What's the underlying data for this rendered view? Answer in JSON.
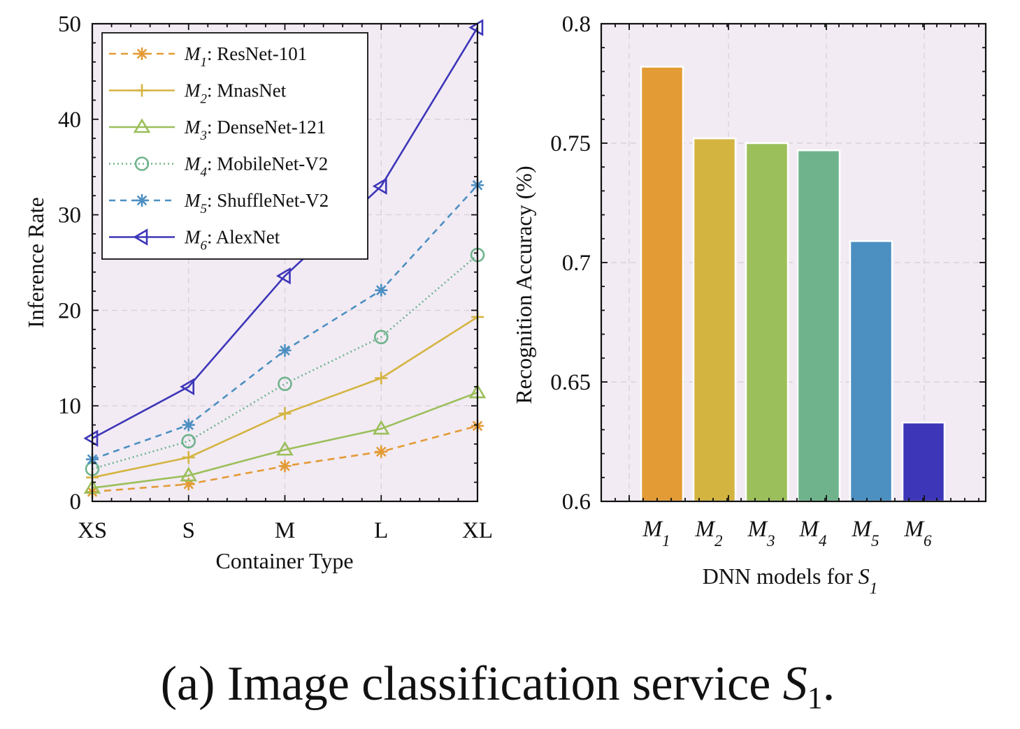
{
  "caption": {
    "prefix": "(a) Image classification service ",
    "var": "S",
    "sub": "1",
    "suffix": "."
  },
  "chart_data": [
    {
      "type": "line",
      "xlabel": "Container Type",
      "ylabel": "Inference Rate",
      "categories": [
        "XS",
        "S",
        "M",
        "L",
        "XL"
      ],
      "ylim": [
        0,
        50
      ],
      "yticks": [
        0,
        10,
        20,
        30,
        40,
        50
      ],
      "grid": true,
      "legend": "top-left",
      "series": [
        {
          "name": "ResNet-101",
          "sym": "M",
          "sub": "1",
          "values": [
            1.0,
            1.8,
            3.7,
            5.2,
            7.9
          ],
          "color": "#e39b35",
          "dash": "10,7",
          "marker": "asterisk"
        },
        {
          "name": "MnasNet",
          "sym": "M",
          "sub": "2",
          "values": [
            2.5,
            4.6,
            9.2,
            12.9,
            19.3
          ],
          "color": "#d4b441",
          "dash": "",
          "marker": "plus"
        },
        {
          "name": "DenseNet-121",
          "sym": "M",
          "sub": "3",
          "values": [
            1.4,
            2.7,
            5.4,
            7.6,
            11.4
          ],
          "color": "#9bbf5a",
          "dash": "",
          "marker": "triangle"
        },
        {
          "name": "MobileNet-V2",
          "sym": "M",
          "sub": "4",
          "values": [
            3.4,
            6.3,
            12.3,
            17.2,
            25.8
          ],
          "color": "#6fb38c",
          "dash": "2,4",
          "marker": "circle"
        },
        {
          "name": "ShuffleNet-V2",
          "sym": "M",
          "sub": "5",
          "values": [
            4.4,
            8.0,
            15.8,
            22.1,
            33.1
          ],
          "color": "#4c8fc1",
          "dash": "9,7",
          "marker": "asterisk"
        },
        {
          "name": "AlexNet",
          "sym": "M",
          "sub": "6",
          "values": [
            6.6,
            12.0,
            23.6,
            33.0,
            49.6
          ],
          "color": "#3d36b8",
          "dash": "",
          "marker": "ltriangle"
        }
      ]
    },
    {
      "type": "bar",
      "xlabel": "DNN models for",
      "xlabel_var": "S",
      "xlabel_sub": "1",
      "ylabel": "Recognition Accuracy (%)",
      "ylim": [
        0.6,
        0.8
      ],
      "yticks": [
        "0.6",
        "0.65",
        "0.7",
        "0.75",
        "0.8"
      ],
      "grid": true,
      "categories": [
        {
          "sym": "M",
          "sub": "1"
        },
        {
          "sym": "M",
          "sub": "2"
        },
        {
          "sym": "M",
          "sub": "3"
        },
        {
          "sym": "M",
          "sub": "4"
        },
        {
          "sym": "M",
          "sub": "5"
        },
        {
          "sym": "M",
          "sub": "6"
        }
      ],
      "values": [
        0.782,
        0.752,
        0.75,
        0.747,
        0.709,
        0.633
      ],
      "colors": [
        "#e39b35",
        "#d4b441",
        "#9bbf5a",
        "#6fb38c",
        "#4c8fc1",
        "#3d36b8"
      ]
    }
  ]
}
